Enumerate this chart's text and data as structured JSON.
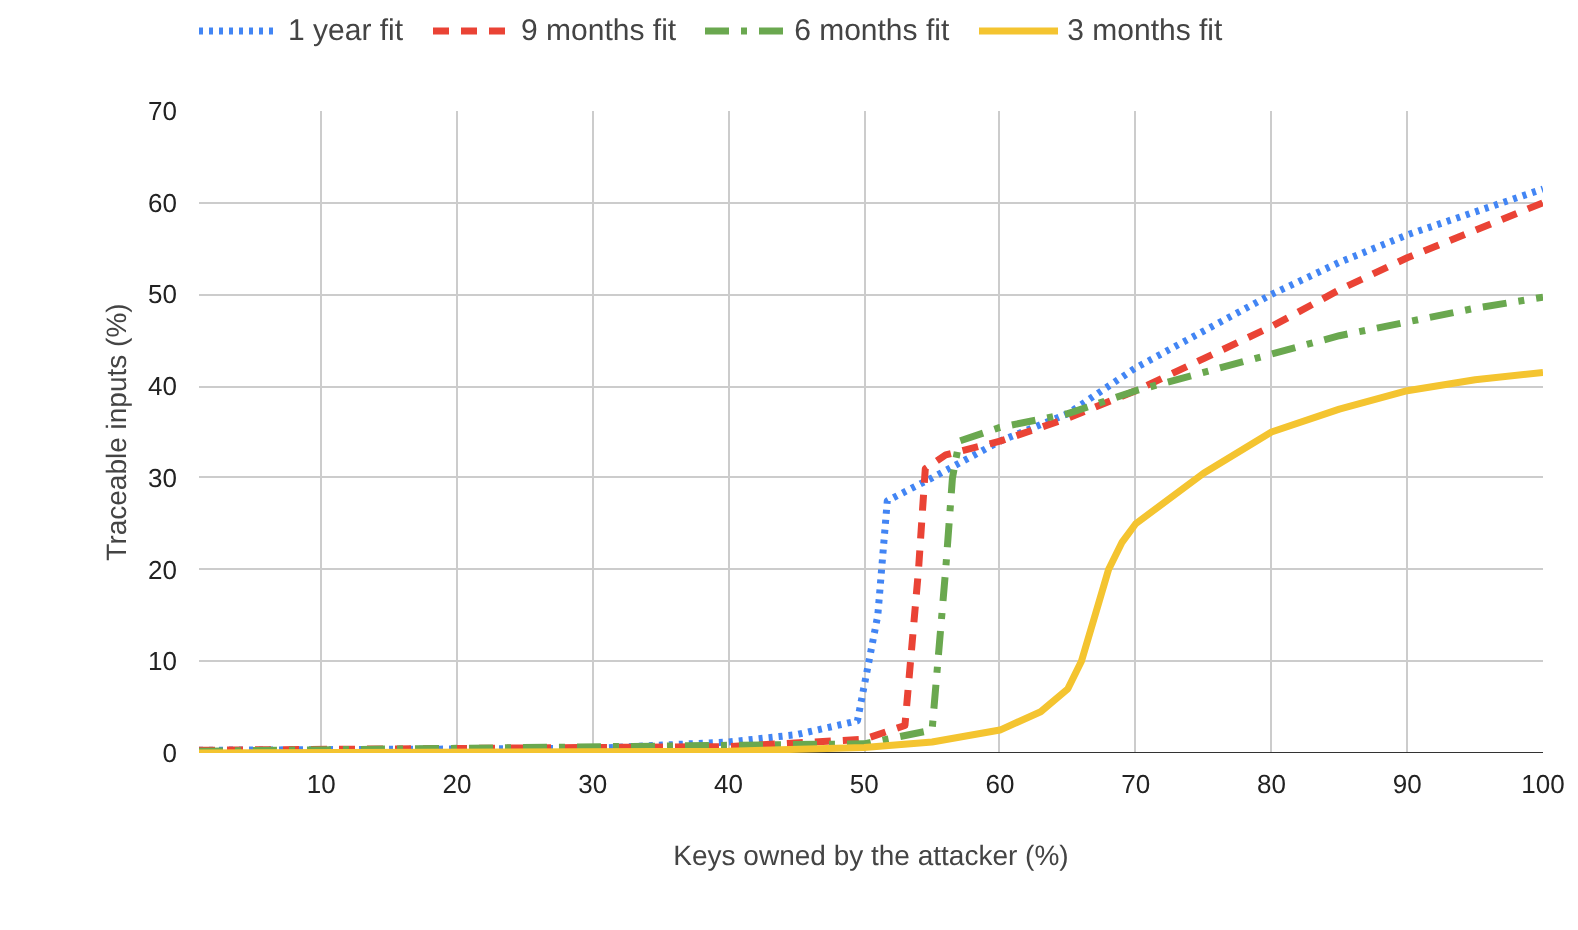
{
  "chart_data": {
    "type": "line",
    "xlabel": "Keys owned by the attacker (%)",
    "ylabel": "Traceable inputs (%)",
    "legend": "top",
    "grid": true,
    "xlim": [
      1,
      100
    ],
    "xticks": [
      10,
      20,
      30,
      40,
      50,
      60,
      70,
      80,
      90,
      100
    ],
    "ylim": [
      0,
      70
    ],
    "yticks": [
      0,
      10,
      20,
      30,
      40,
      50,
      60,
      70
    ],
    "series": [
      {
        "name": "1 year fit",
        "color": "#4285f4",
        "line_style": "dotted",
        "x": [
          1,
          30,
          40,
          45,
          49.5,
          51,
          51.7,
          55,
          60,
          65,
          70,
          75,
          80,
          85,
          90,
          95,
          100
        ],
        "values": [
          0.3,
          0.5,
          1.2,
          2,
          3.5,
          15,
          27.5,
          30,
          34,
          37,
          42,
          46,
          50,
          53.5,
          56.5,
          59,
          61.5
        ]
      },
      {
        "name": "9 months fit",
        "color": "#ea4335",
        "line_style": "dashed",
        "x": [
          1,
          40,
          50,
          53,
          54,
          54.5,
          56,
          60,
          65,
          70,
          75,
          80,
          85,
          90,
          95,
          100
        ],
        "values": [
          0.3,
          0.7,
          1.5,
          3,
          20,
          31,
          32.5,
          34,
          36.5,
          39.5,
          43,
          46.5,
          50.5,
          54,
          57,
          60
        ]
      },
      {
        "name": "6 months fit",
        "color": "#6aa84f",
        "line_style": "dashdot",
        "x": [
          1,
          50,
          55,
          56,
          56.5,
          57,
          60,
          65,
          70,
          75,
          80,
          85,
          90,
          95,
          100
        ],
        "values": [
          0.2,
          1,
          2.5,
          20,
          30,
          34,
          35.5,
          37,
          39.5,
          41.5,
          43.5,
          45.5,
          47,
          48.5,
          49.7
        ]
      },
      {
        "name": "3 months fit",
        "color": "#f4c430",
        "line_style": "solid",
        "x": [
          1,
          40,
          50,
          55,
          60,
          63,
          65,
          66,
          67,
          68,
          69,
          70,
          75,
          80,
          85,
          90,
          95,
          100
        ],
        "values": [
          0,
          0.2,
          0.6,
          1.2,
          2.5,
          4.5,
          7,
          10,
          15,
          20,
          23,
          25,
          30.5,
          35,
          37.5,
          39.5,
          40.7,
          41.5
        ]
      }
    ]
  }
}
